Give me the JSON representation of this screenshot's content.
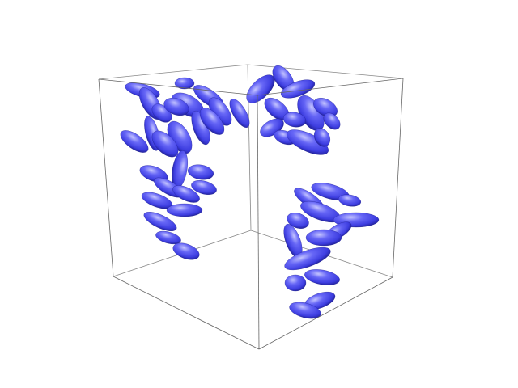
{
  "scene": {
    "background_color": "#ffffff",
    "box_line_color": "#777777",
    "ellipsoid_color": "#4a4aee",
    "ellipsoid_highlight": "#b8b8ff",
    "ellipsoid_shadow": "#1c1c8a",
    "cluster_count": 3
  }
}
